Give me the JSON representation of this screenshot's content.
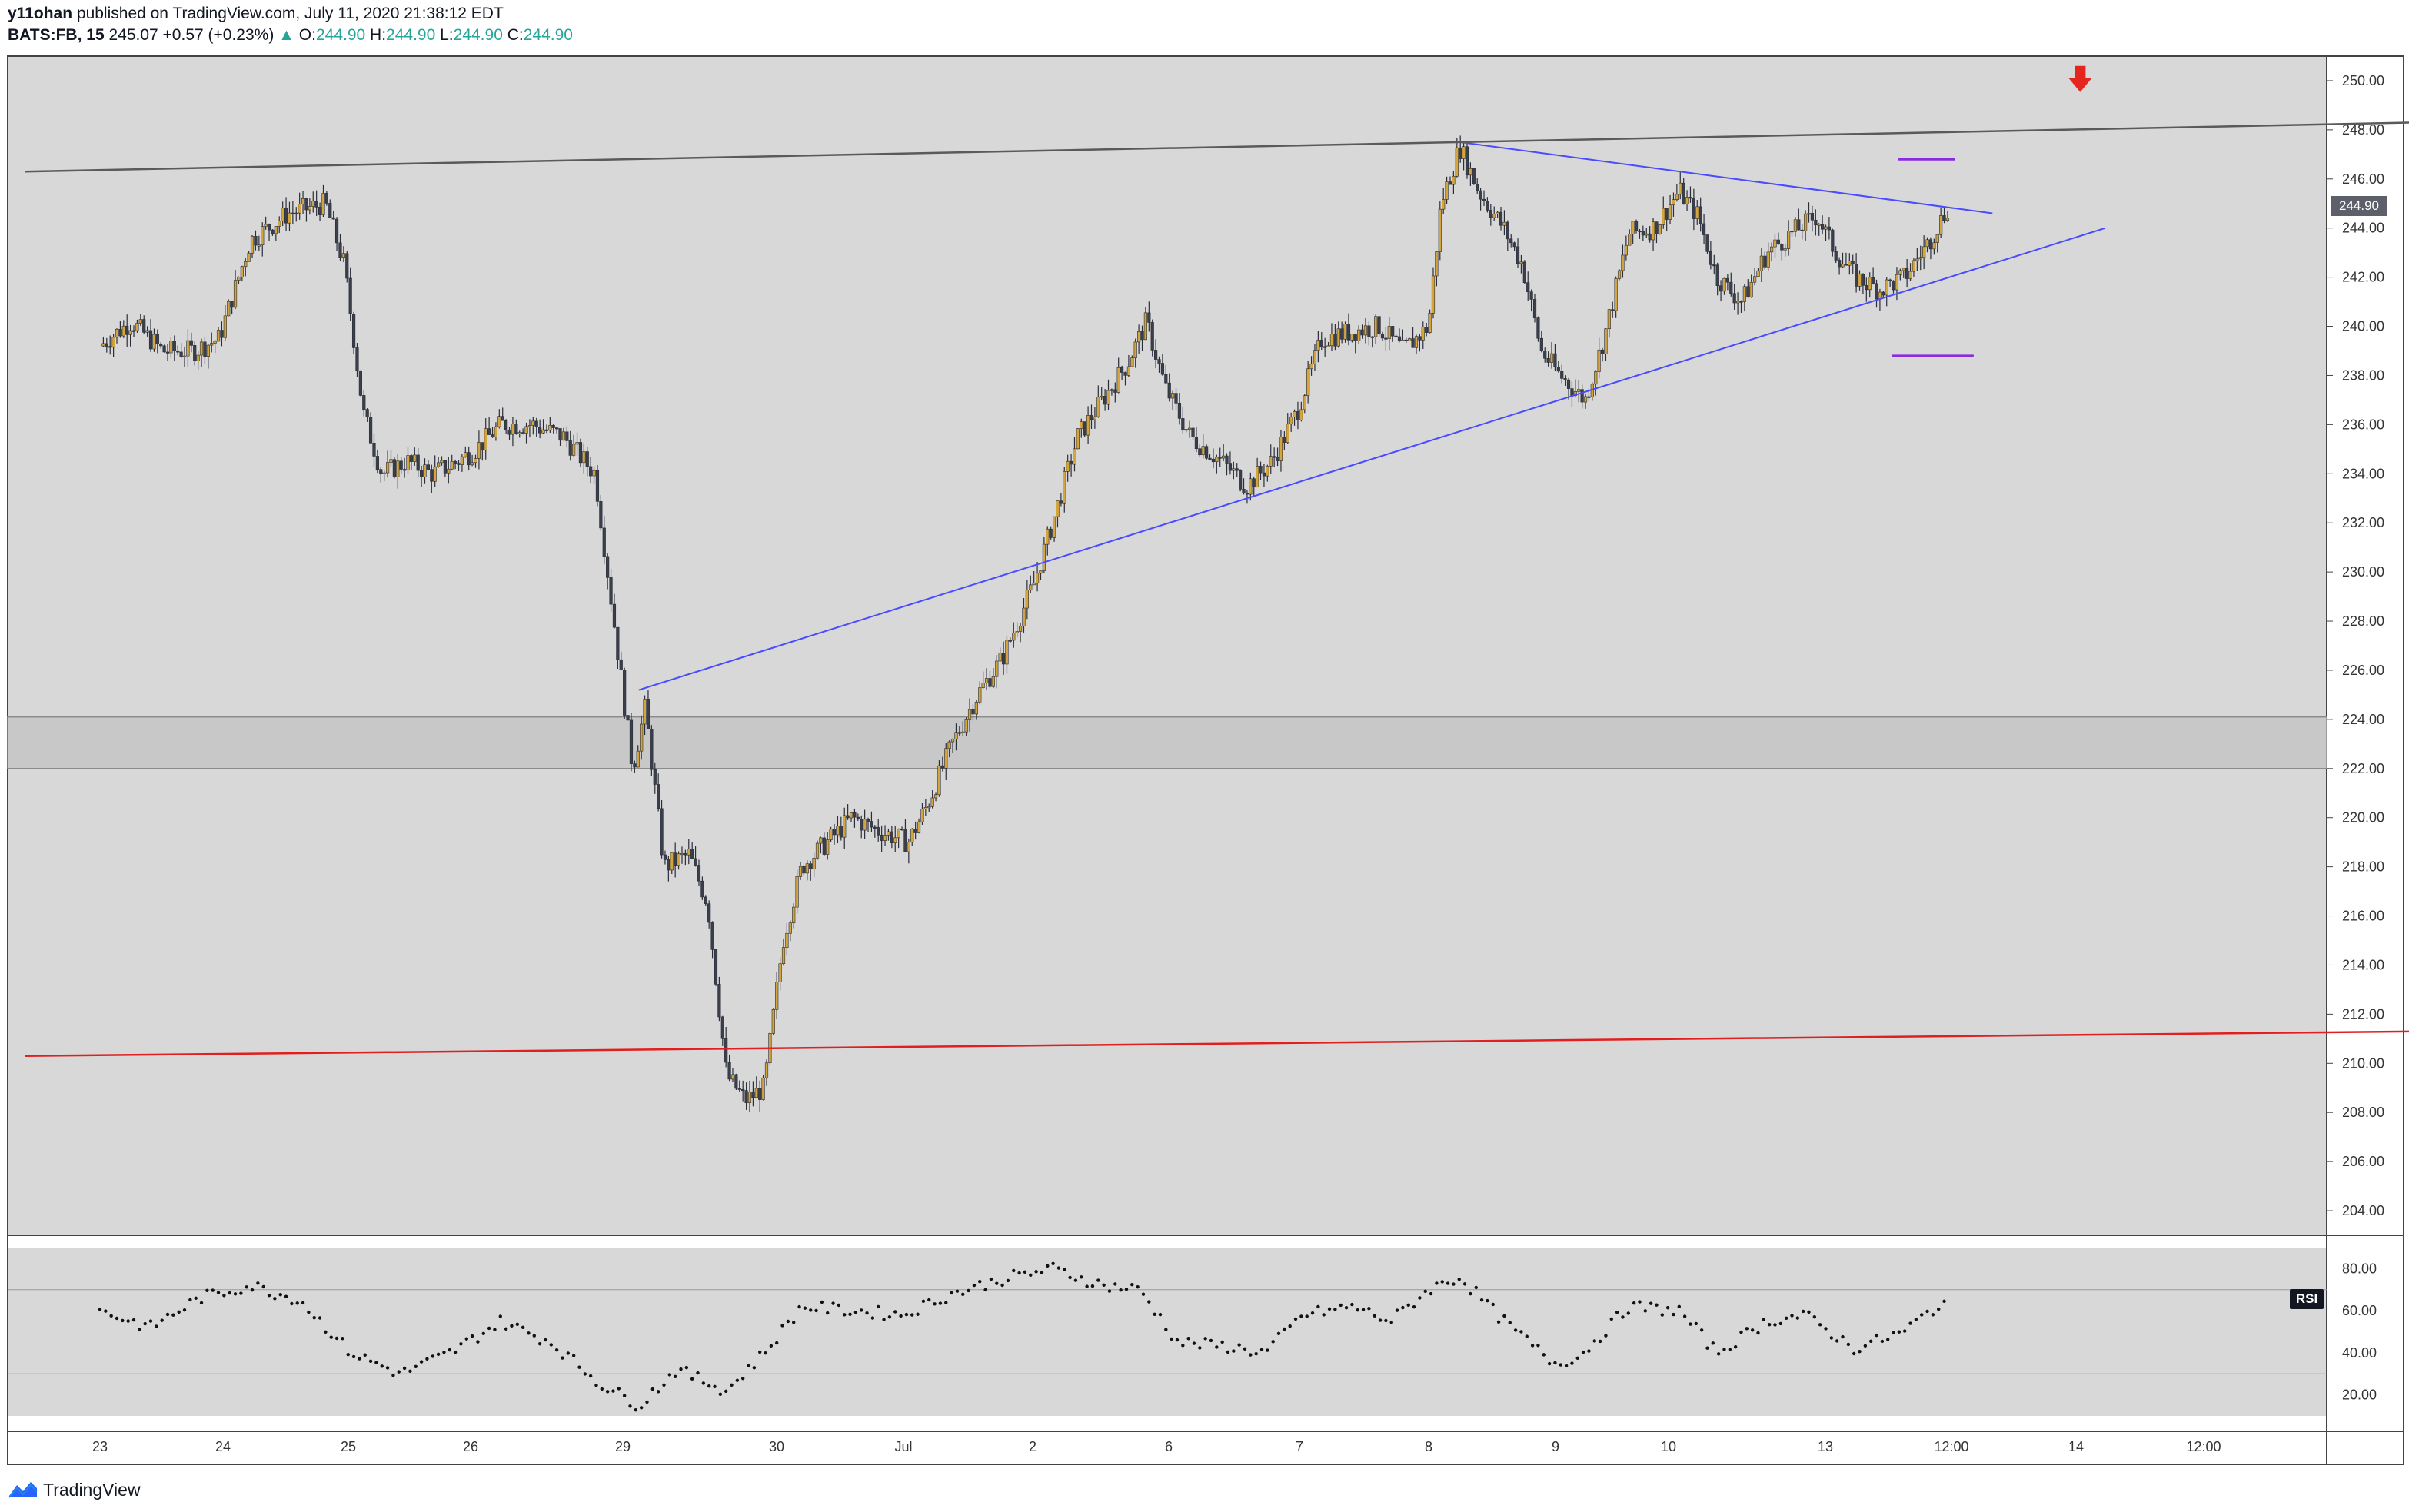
{
  "header": {
    "author": "y11ohan",
    "published_text": "published on TradingView.com, July 11, 2020 21:38:12 EDT",
    "symbol": "BATS:FB, 15",
    "last_price": "245.07",
    "change": "+0.57 (+0.23%)",
    "change_arrow": "▲",
    "o_label": "O:",
    "o_value": "244.90",
    "h_label": "H:",
    "h_value": "244.90",
    "l_label": "L:",
    "l_value": "244.90",
    "c_label": "C:",
    "c_value": "244.90"
  },
  "footer": {
    "brand": "TradingView"
  },
  "indicator": {
    "rsi_label": "RSI"
  },
  "colors": {
    "background": "#d8d8d8",
    "candle_up": "#d4a53c",
    "candle_down": "#3a3f4b",
    "trendline_blue": "#4a4aff",
    "support_red": "#e02020",
    "resistance_gray": "#5a5a5a",
    "marker_purple": "#8a2be2",
    "arrow_red": "#e5261f"
  },
  "chart_data": {
    "type": "candlestick",
    "symbol": "BATS:FB",
    "interval": "15",
    "y_range": [
      203,
      251
    ],
    "y_ticks": [
      "250.00",
      "248.00",
      "246.00",
      "244.00",
      "242.00",
      "240.00",
      "238.00",
      "236.00",
      "234.00",
      "232.00",
      "230.00",
      "228.00",
      "226.00",
      "224.00",
      "222.00",
      "220.00",
      "218.00",
      "216.00",
      "214.00",
      "212.00",
      "210.00",
      "208.00",
      "206.00",
      "204.00"
    ],
    "last_price_label": "244.90",
    "x_ticks": [
      "23",
      "24",
      "25",
      "26",
      "29",
      "30",
      "Jul",
      "2",
      "6",
      "7",
      "8",
      "9",
      "10",
      "13",
      "12:00",
      "14",
      "12:00"
    ],
    "price_path": [
      [
        0,
        239.2
      ],
      [
        0.25,
        240.2
      ],
      [
        0.5,
        239.0
      ],
      [
        0.75,
        239.0
      ],
      [
        0.95,
        239.5
      ],
      [
        1.2,
        243.5
      ],
      [
        1.5,
        244.6
      ],
      [
        1.8,
        245.0
      ],
      [
        1.95,
        242.5
      ],
      [
        2.1,
        236.5
      ],
      [
        2.25,
        234.0
      ],
      [
        2.45,
        234.5
      ],
      [
        2.65,
        234.0
      ],
      [
        2.85,
        234.5
      ],
      [
        3.0,
        235.0
      ],
      [
        3.2,
        236.0
      ],
      [
        3.45,
        236.0
      ],
      [
        3.7,
        235.5
      ],
      [
        3.95,
        234.0
      ],
      [
        4.1,
        228.0
      ],
      [
        4.25,
        222.0
      ],
      [
        4.35,
        224.5
      ],
      [
        4.5,
        218.0
      ],
      [
        4.7,
        218.5
      ],
      [
        4.85,
        216.5
      ],
      [
        5.0,
        209.5
      ],
      [
        5.15,
        208.5
      ],
      [
        5.3,
        209.0
      ],
      [
        5.45,
        215.0
      ],
      [
        5.6,
        218.0
      ],
      [
        5.8,
        219.0
      ],
      [
        6.0,
        220.0
      ],
      [
        6.2,
        219.5
      ],
      [
        6.45,
        219.0
      ],
      [
        6.6,
        220.5
      ],
      [
        6.8,
        223.0
      ],
      [
        7.0,
        225.0
      ],
      [
        7.2,
        226.5
      ],
      [
        7.45,
        229.5
      ],
      [
        7.6,
        232.0
      ],
      [
        7.8,
        235.5
      ],
      [
        8.0,
        237.0
      ],
      [
        8.2,
        238.5
      ],
      [
        8.35,
        240.2
      ],
      [
        8.5,
        237.5
      ],
      [
        8.7,
        235.5
      ],
      [
        8.95,
        234.5
      ],
      [
        9.15,
        233.5
      ],
      [
        9.35,
        234.5
      ],
      [
        9.55,
        236.5
      ],
      [
        9.75,
        239.5
      ],
      [
        10.0,
        239.8
      ],
      [
        10.2,
        240.0
      ],
      [
        10.4,
        239.0
      ],
      [
        10.6,
        240.0
      ],
      [
        10.7,
        245.0
      ],
      [
        10.85,
        247.3
      ],
      [
        11.0,
        245.5
      ],
      [
        11.2,
        244.0
      ],
      [
        11.35,
        242.5
      ],
      [
        11.5,
        239.0
      ],
      [
        11.65,
        238.0
      ],
      [
        11.85,
        237.0
      ],
      [
        12.0,
        239.5
      ],
      [
        12.2,
        243.8
      ],
      [
        12.4,
        244.0
      ],
      [
        12.6,
        245.5
      ],
      [
        12.75,
        244.5
      ],
      [
        12.9,
        242.0
      ],
      [
        13.1,
        241.0
      ],
      [
        13.3,
        243.0
      ],
      [
        13.5,
        243.8
      ],
      [
        13.7,
        244.5
      ],
      [
        13.85,
        243.0
      ],
      [
        14.0,
        242.0
      ],
      [
        14.2,
        241.5
      ],
      [
        14.4,
        242.0
      ],
      [
        14.6,
        243.5
      ],
      [
        14.75,
        244.9
      ]
    ],
    "trendlines": [
      {
        "name": "rising support",
        "x1": 4.3,
        "y1": 225.2,
        "x2": 16.0,
        "y2": 244.0,
        "color": "blue"
      },
      {
        "name": "falling resistance",
        "x1": 10.85,
        "y1": 247.5,
        "x2": 15.1,
        "y2": 244.6,
        "color": "blue"
      },
      {
        "name": "upper resistance",
        "x1": -0.6,
        "y1": 246.3,
        "x2": 18.5,
        "y2": 248.3,
        "color": "gray"
      },
      {
        "name": "lower support",
        "x1": -0.6,
        "y1": 210.3,
        "x2": 18.5,
        "y2": 211.3,
        "color": "red"
      }
    ],
    "zone": {
      "from": 222.0,
      "to": 224.1
    },
    "markers": [
      {
        "type": "hline",
        "x1": 14.35,
        "x2": 14.8,
        "y": 246.8
      },
      {
        "type": "hline",
        "x1": 14.3,
        "x2": 14.95,
        "y": 238.8
      }
    ],
    "signal_arrow": {
      "direction": "down",
      "x": 15.8,
      "y": 250.1
    },
    "rsi": {
      "label": "RSI",
      "y_ticks": [
        "80.00",
        "60.00",
        "40.00",
        "20.00"
      ],
      "y_range": [
        10,
        90
      ],
      "path": [
        [
          0,
          60
        ],
        [
          0.4,
          52
        ],
        [
          0.8,
          66
        ],
        [
          1.2,
          72
        ],
        [
          1.6,
          65
        ],
        [
          2.0,
          40
        ],
        [
          2.4,
          30
        ],
        [
          2.8,
          40
        ],
        [
          3.2,
          55
        ],
        [
          3.6,
          45
        ],
        [
          4.0,
          25
        ],
        [
          4.3,
          15
        ],
        [
          4.6,
          32
        ],
        [
          5.0,
          22
        ],
        [
          5.3,
          40
        ],
        [
          5.6,
          62
        ],
        [
          6.0,
          60
        ],
        [
          6.4,
          58
        ],
        [
          6.8,
          68
        ],
        [
          7.2,
          75
        ],
        [
          7.6,
          80
        ],
        [
          8.0,
          72
        ],
        [
          8.3,
          70
        ],
        [
          8.6,
          45
        ],
        [
          9.0,
          43
        ],
        [
          9.3,
          40
        ],
        [
          9.6,
          58
        ],
        [
          10.0,
          62
        ],
        [
          10.3,
          55
        ],
        [
          10.6,
          70
        ],
        [
          10.85,
          76
        ],
        [
          11.2,
          55
        ],
        [
          11.6,
          35
        ],
        [
          11.8,
          38
        ],
        [
          12.2,
          62
        ],
        [
          12.6,
          60
        ],
        [
          12.9,
          40
        ],
        [
          13.3,
          55
        ],
        [
          13.6,
          58
        ],
        [
          14.0,
          42
        ],
        [
          14.4,
          50
        ],
        [
          14.6,
          60
        ],
        [
          14.75,
          65
        ]
      ]
    }
  }
}
